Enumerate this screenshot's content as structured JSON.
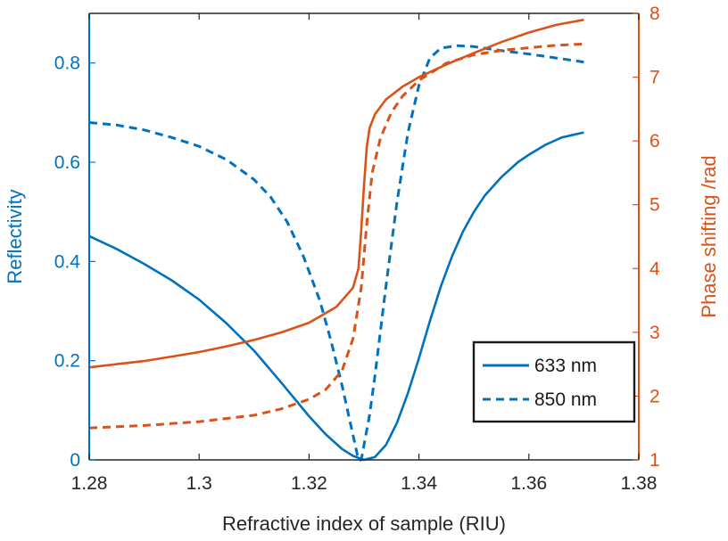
{
  "chart_data": {
    "type": "line",
    "xlabel": "Refractive index of sample (RIU)",
    "ylabel_left": "Reflectivity",
    "ylabel_right": "Phase shifting /rad",
    "xlim": [
      1.28,
      1.38
    ],
    "ylim_left": [
      0,
      0.9
    ],
    "ylim_right": [
      1,
      8
    ],
    "x_ticks": [
      "1.28",
      "1.3",
      "1.32",
      "1.34",
      "1.36",
      "1.38"
    ],
    "y_left_ticks": [
      "0",
      "0.2",
      "0.4",
      "0.6",
      "0.8"
    ],
    "y_right_ticks": [
      "1",
      "2",
      "3",
      "4",
      "5",
      "6",
      "7",
      "8"
    ],
    "grid": false,
    "legend_position": "bottom-right",
    "colors": {
      "left_axis": "#0072BD",
      "right_axis": "#D95319",
      "axes": "#262626"
    },
    "legend": [
      {
        "label": "633 nm",
        "style": "solid"
      },
      {
        "label": "850 nm",
        "style": "dashed"
      }
    ],
    "series": [
      {
        "axis": "left",
        "color": "#0072BD",
        "style": "solid",
        "wavelength": "633 nm",
        "points": [
          [
            1.28,
            0.451
          ],
          [
            1.285,
            0.425
          ],
          [
            1.29,
            0.395
          ],
          [
            1.295,
            0.362
          ],
          [
            1.3,
            0.323
          ],
          [
            1.305,
            0.275
          ],
          [
            1.31,
            0.22
          ],
          [
            1.315,
            0.155
          ],
          [
            1.32,
            0.088
          ],
          [
            1.323,
            0.052
          ],
          [
            1.326,
            0.022
          ],
          [
            1.328,
            0.008
          ],
          [
            1.33,
            0.0
          ],
          [
            1.332,
            0.006
          ],
          [
            1.334,
            0.03
          ],
          [
            1.336,
            0.075
          ],
          [
            1.338,
            0.135
          ],
          [
            1.34,
            0.205
          ],
          [
            1.342,
            0.28
          ],
          [
            1.344,
            0.35
          ],
          [
            1.346,
            0.41
          ],
          [
            1.348,
            0.46
          ],
          [
            1.35,
            0.5
          ],
          [
            1.352,
            0.533
          ],
          [
            1.355,
            0.57
          ],
          [
            1.358,
            0.6
          ],
          [
            1.36,
            0.615
          ],
          [
            1.363,
            0.635
          ],
          [
            1.366,
            0.65
          ],
          [
            1.37,
            0.66
          ]
        ]
      },
      {
        "axis": "left",
        "color": "#0072BD",
        "style": "dashed",
        "wavelength": "850 nm",
        "points": [
          [
            1.28,
            0.68
          ],
          [
            1.285,
            0.675
          ],
          [
            1.29,
            0.665
          ],
          [
            1.295,
            0.65
          ],
          [
            1.3,
            0.632
          ],
          [
            1.305,
            0.605
          ],
          [
            1.31,
            0.565
          ],
          [
            1.313,
            0.53
          ],
          [
            1.316,
            0.48
          ],
          [
            1.319,
            0.41
          ],
          [
            1.322,
            0.32
          ],
          [
            1.324,
            0.24
          ],
          [
            1.326,
            0.15
          ],
          [
            1.327,
            0.1
          ],
          [
            1.328,
            0.05
          ],
          [
            1.329,
            0.0
          ],
          [
            1.3295,
            0.0
          ],
          [
            1.33,
            0.03
          ],
          [
            1.331,
            0.09
          ],
          [
            1.332,
            0.17
          ],
          [
            1.334,
            0.35
          ],
          [
            1.336,
            0.52
          ],
          [
            1.338,
            0.66
          ],
          [
            1.34,
            0.755
          ],
          [
            1.342,
            0.81
          ],
          [
            1.344,
            0.83
          ],
          [
            1.347,
            0.835
          ],
          [
            1.35,
            0.833
          ],
          [
            1.355,
            0.825
          ],
          [
            1.36,
            0.818
          ],
          [
            1.365,
            0.81
          ],
          [
            1.37,
            0.802
          ]
        ]
      },
      {
        "axis": "right",
        "color": "#D95319",
        "style": "solid",
        "wavelength": "633 nm",
        "points": [
          [
            1.28,
            2.45
          ],
          [
            1.285,
            2.5
          ],
          [
            1.29,
            2.55
          ],
          [
            1.295,
            2.62
          ],
          [
            1.3,
            2.69
          ],
          [
            1.305,
            2.78
          ],
          [
            1.31,
            2.88
          ],
          [
            1.315,
            3.0
          ],
          [
            1.32,
            3.15
          ],
          [
            1.325,
            3.4
          ],
          [
            1.328,
            3.7
          ],
          [
            1.329,
            4.0
          ],
          [
            1.3295,
            4.6
          ],
          [
            1.33,
            5.3
          ],
          [
            1.3305,
            5.9
          ],
          [
            1.331,
            6.2
          ],
          [
            1.332,
            6.42
          ],
          [
            1.334,
            6.65
          ],
          [
            1.337,
            6.85
          ],
          [
            1.34,
            7.0
          ],
          [
            1.345,
            7.2
          ],
          [
            1.35,
            7.38
          ],
          [
            1.355,
            7.55
          ],
          [
            1.36,
            7.7
          ],
          [
            1.365,
            7.82
          ],
          [
            1.37,
            7.9
          ]
        ]
      },
      {
        "axis": "right",
        "color": "#D95319",
        "style": "dashed",
        "wavelength": "850 nm",
        "points": [
          [
            1.28,
            1.5
          ],
          [
            1.29,
            1.54
          ],
          [
            1.3,
            1.6
          ],
          [
            1.31,
            1.7
          ],
          [
            1.315,
            1.8
          ],
          [
            1.32,
            1.95
          ],
          [
            1.323,
            2.1
          ],
          [
            1.326,
            2.4
          ],
          [
            1.328,
            2.9
          ],
          [
            1.3295,
            3.7
          ],
          [
            1.3305,
            4.7
          ],
          [
            1.3315,
            5.5
          ],
          [
            1.333,
            6.05
          ],
          [
            1.335,
            6.45
          ],
          [
            1.337,
            6.7
          ],
          [
            1.34,
            6.95
          ],
          [
            1.345,
            7.22
          ],
          [
            1.35,
            7.35
          ],
          [
            1.355,
            7.42
          ],
          [
            1.36,
            7.46
          ],
          [
            1.365,
            7.5
          ],
          [
            1.37,
            7.52
          ]
        ]
      }
    ]
  }
}
